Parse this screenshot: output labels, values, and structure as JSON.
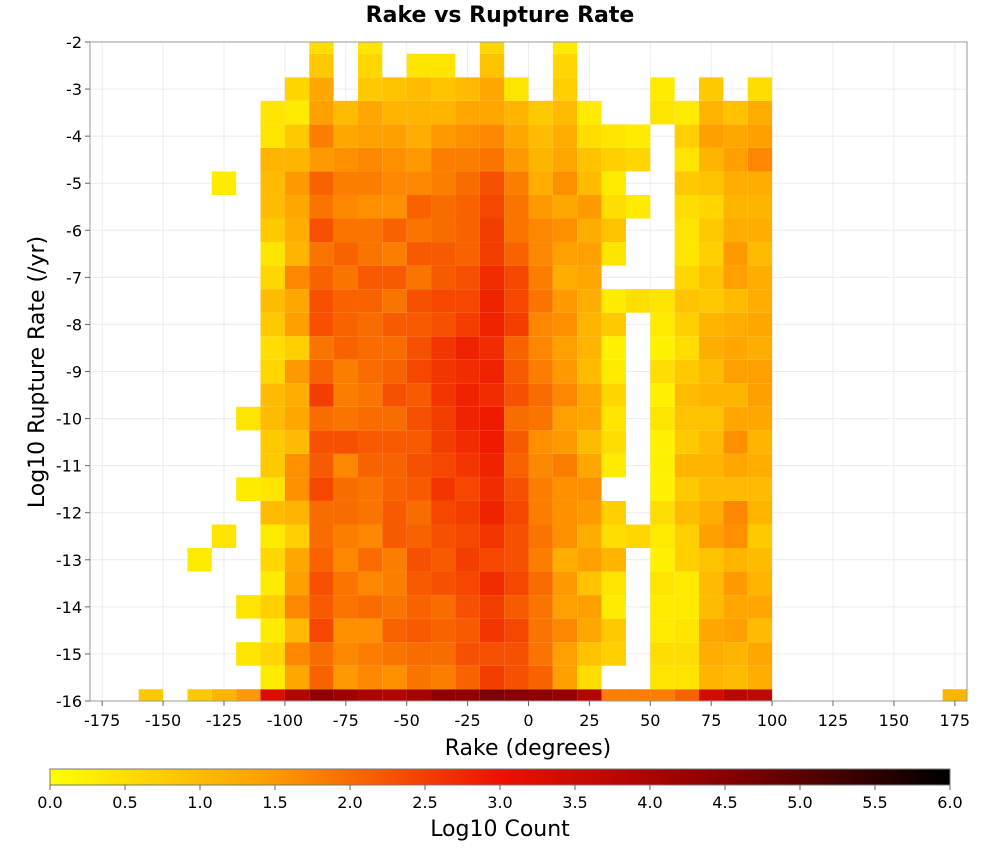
{
  "chart_data": {
    "type": "heatmap",
    "title": "Rake vs Rupture Rate",
    "xlabel": "Rake (degrees)",
    "ylabel": "Log10 Rupture Rate (/yr)",
    "xlim": [
      -180,
      180
    ],
    "ylim": [
      -16,
      -2
    ],
    "x_ticks": [
      "-175",
      "-150",
      "-125",
      "-100",
      "-75",
      "-50",
      "-25",
      "0",
      "25",
      "50",
      "75",
      "100",
      "125",
      "150",
      "175"
    ],
    "y_ticks": [
      "-2",
      "-3",
      "-4",
      "-5",
      "-6",
      "-7",
      "-8",
      "-9",
      "-10",
      "-11",
      "-12",
      "-13",
      "-14",
      "-15",
      "-16"
    ],
    "grid": true,
    "x_bin_width": 10,
    "y_bin_height": 0.5,
    "colorbar": {
      "label": "Log10 Count",
      "min": 0.0,
      "max": 6.0,
      "ticks": [
        "0.0",
        "0.5",
        "1.0",
        "1.5",
        "2.0",
        "2.5",
        "3.0",
        "3.5",
        "4.0",
        "4.5",
        "5.0",
        "5.5",
        "6.0"
      ],
      "colors": [
        "#ffff00",
        "#ff9900",
        "#ee1100",
        "#880000",
        "#000000"
      ]
    },
    "columns": [
      {
        "rake": -155,
        "from": -16,
        "values": [
          0.8
        ]
      },
      {
        "rake": -135,
        "from": -16,
        "values": [
          0.8,
          null,
          null,
          null,
          null,
          null,
          0.3
        ]
      },
      {
        "rake": -125,
        "from": -16,
        "values": [
          1.1,
          null,
          null,
          null,
          null,
          null,
          null,
          0.4,
          null,
          null,
          null,
          null,
          null,
          null,
          null,
          null,
          null,
          null,
          null,
          null,
          null,
          null,
          0.3
        ]
      },
      {
        "rake": -115,
        "from": -16,
        "values": [
          1.5,
          null,
          0.4,
          null,
          0.4,
          null,
          null,
          null,
          null,
          0.3,
          null,
          null,
          0.4
        ]
      },
      {
        "rake": -105,
        "from": -16,
        "values": [
          3.3,
          0.3,
          0.6,
          0.3,
          0.7,
          0.3,
          0.6,
          0.3,
          1.0,
          0.4,
          0.8,
          0.8,
          1.0,
          1.0,
          0.6,
          0.5,
          0.8,
          1.0,
          0.6,
          0.4,
          0.8,
          1.0,
          1.0,
          1.1,
          0.4,
          0.4
        ]
      },
      {
        "rake": -95,
        "from": -16,
        "values": [
          3.9,
          1.3,
          1.7,
          1.0,
          1.7,
          1.4,
          1.3,
          0.7,
          1.1,
          1.6,
          1.6,
          1.0,
          1.3,
          1.2,
          1.5,
          0.7,
          1.4,
          1.3,
          1.7,
          1.1,
          1.2,
          1.3,
          1.5,
          1.1,
          0.8,
          0.3,
          0.6
        ]
      },
      {
        "rake": -85,
        "from": -16,
        "values": [
          4.4,
          2.1,
          2.0,
          2.4,
          2.2,
          2.3,
          2.1,
          2.0,
          2.0,
          2.4,
          2.2,
          2.3,
          2.0,
          2.5,
          2.1,
          1.9,
          2.3,
          2.3,
          2.1,
          1.9,
          2.3,
          1.9,
          2.1,
          1.5,
          1.8,
          1.4,
          1.3,
          0.8,
          0.5
        ]
      },
      {
        "rake": -75,
        "from": -16,
        "values": [
          4.2,
          1.5,
          1.7,
          1.6,
          1.9,
          1.9,
          1.7,
          1.8,
          2.0,
          2.0,
          1.7,
          2.3,
          1.9,
          1.8,
          1.8,
          2.1,
          2.1,
          2.1,
          1.9,
          2.1,
          1.9,
          1.7,
          1.8,
          1.6,
          1.3,
          1.0
        ]
      },
      {
        "rake": -65,
        "from": -16,
        "values": [
          4.0,
          1.7,
          1.8,
          1.6,
          2.0,
          1.7,
          2.0,
          1.7,
          1.9,
          1.9,
          2.1,
          2.2,
          2.0,
          1.9,
          2.0,
          2.0,
          2.0,
          2.1,
          2.2,
          1.9,
          1.9,
          1.6,
          1.8,
          1.7,
          1.4,
          1.3,
          0.8,
          0.6,
          0.4
        ]
      },
      {
        "rake": -55,
        "from": -16,
        "values": [
          3.9,
          1.6,
          1.9,
          2.1,
          1.9,
          1.8,
          1.8,
          2.2,
          2.2,
          2.1,
          2.1,
          2.2,
          2.0,
          2.3,
          2.1,
          2.0,
          2.2,
          1.9,
          2.2,
          1.8,
          2.1,
          1.6,
          1.7,
          1.6,
          1.4,
          1.1,
          0.9
        ]
      },
      {
        "rake": -45,
        "from": -16,
        "values": [
          4.1,
          1.9,
          2.0,
          2.2,
          2.1,
          2.2,
          2.3,
          2.1,
          2.0,
          2.2,
          2.3,
          2.2,
          2.3,
          2.2,
          2.4,
          2.3,
          2.2,
          2.3,
          1.9,
          2.2,
          1.9,
          2.1,
          1.7,
          1.5,
          1.2,
          1.1,
          1.0,
          0.4
        ]
      },
      {
        "rake": -35,
        "from": -16,
        "values": [
          4.4,
          1.8,
          2.0,
          2.1,
          2.0,
          2.3,
          2.2,
          2.3,
          2.4,
          2.6,
          2.4,
          2.5,
          2.5,
          2.6,
          2.6,
          2.6,
          2.3,
          2.4,
          2.2,
          2.2,
          2.0,
          2.0,
          1.8,
          1.8,
          1.5,
          1.1,
          0.9,
          0.4
        ]
      },
      {
        "rake": -25,
        "from": -16,
        "values": [
          4.4,
          2.1,
          2.3,
          2.2,
          2.3,
          2.4,
          2.5,
          2.4,
          2.5,
          2.4,
          2.6,
          2.7,
          2.8,
          2.8,
          2.7,
          2.8,
          2.5,
          2.4,
          2.3,
          2.1,
          2.1,
          2.1,
          2.0,
          1.8,
          1.6,
          1.3,
          1.0
        ]
      },
      {
        "rake": -15,
        "from": -16,
        "values": [
          4.6,
          2.5,
          2.3,
          2.6,
          2.5,
          2.7,
          2.4,
          2.6,
          2.8,
          2.7,
          2.8,
          2.9,
          2.9,
          2.7,
          2.8,
          2.7,
          2.8,
          2.8,
          2.7,
          2.5,
          2.5,
          2.4,
          2.3,
          1.9,
          1.7,
          1.3,
          1.3,
          0.9,
          0.6
        ]
      },
      {
        "rake": -5,
        "from": -16,
        "values": [
          4.5,
          2.3,
          2.3,
          2.4,
          2.2,
          2.4,
          2.3,
          2.3,
          2.4,
          2.3,
          2.1,
          2.2,
          2.0,
          2.3,
          2.2,
          2.1,
          2.5,
          2.4,
          2.4,
          2.1,
          1.9,
          1.9,
          1.8,
          1.5,
          1.3,
          1.1,
          0.4
        ]
      },
      {
        "rake": 5,
        "from": -16,
        "values": [
          4.4,
          2.1,
          1.9,
          1.9,
          1.9,
          2.0,
          1.8,
          1.9,
          1.8,
          1.8,
          1.7,
          1.6,
          1.9,
          2.0,
          1.8,
          1.7,
          1.7,
          1.9,
          1.8,
          1.7,
          1.7,
          1.5,
          1.2,
          1.1,
          1.0,
          0.8
        ]
      },
      {
        "rake": 15,
        "from": -16,
        "values": [
          4.3,
          1.4,
          1.4,
          1.7,
          1.4,
          1.5,
          1.2,
          1.6,
          1.6,
          1.6,
          1.8,
          1.5,
          1.4,
          1.7,
          1.5,
          1.4,
          1.6,
          1.5,
          1.2,
          1.4,
          1.6,
          1.3,
          1.6,
          1.3,
          1.2,
          1.0,
          0.7,
          0.6,
          0.3
        ]
      },
      {
        "rake": 25,
        "from": -16,
        "values": [
          3.9,
          0.5,
          0.9,
          1.3,
          1.4,
          0.9,
          1.4,
          1.2,
          1.5,
          1.6,
          1.3,
          1.0,
          1.3,
          1.3,
          1.0,
          1.1,
          1.1,
          1.2,
          1.3,
          1.4,
          1.2,
          1.5,
          1.0,
          0.9,
          0.5,
          0.3
        ]
      },
      {
        "rake": 35,
        "from": -16,
        "values": [
          1.8,
          null,
          0.7,
          0.8,
          0.3,
          0.4,
          1.1,
          0.5,
          0.7,
          null,
          0.3,
          0.5,
          0.4,
          0.6,
          0.3,
          0.2,
          0.8,
          0.3,
          null,
          0.4,
          0.9,
          0.5,
          0.3,
          0.7,
          0.4
        ]
      },
      {
        "rake": 45,
        "from": -16,
        "values": [
          1.8,
          null,
          null,
          null,
          null,
          null,
          null,
          0.6,
          null,
          null,
          null,
          null,
          null,
          null,
          null,
          null,
          null,
          0.5,
          null,
          null,
          null,
          0.3,
          null,
          0.6,
          0.3
        ]
      },
      {
        "rake": 55,
        "from": -16,
        "values": [
          1.8,
          0.4,
          0.5,
          0.3,
          0.3,
          0.4,
          0.2,
          0.3,
          0.5,
          0.2,
          0.2,
          0.2,
          0.4,
          0.2,
          0.5,
          0.2,
          0.3,
          0.4,
          null,
          null,
          null,
          null,
          null,
          null,
          null,
          0.4,
          0.3
        ]
      },
      {
        "rake": 65,
        "from": -16,
        "values": [
          2.1,
          0.4,
          0.5,
          0.4,
          0.3,
          0.3,
          0.7,
          0.7,
          1.0,
          0.8,
          1.1,
          0.8,
          0.9,
          1.0,
          0.8,
          0.5,
          0.7,
          0.9,
          0.6,
          0.4,
          0.4,
          0.5,
          0.8,
          0.4,
          0.7,
          0.3
        ]
      },
      {
        "rake": 75,
        "from": -16,
        "values": [
          3.4,
          1.1,
          1.2,
          1.3,
          1.0,
          1.0,
          0.9,
          1.4,
          1.2,
          1.0,
          1.1,
          1.0,
          0.9,
          1.1,
          1.0,
          1.2,
          1.1,
          0.8,
          0.9,
          0.7,
          0.8,
          0.6,
          0.9,
          1.1,
          1.4,
          1.1,
          0.8
        ]
      },
      {
        "rake": 85,
        "from": -16,
        "values": [
          3.8,
          1.0,
          1.1,
          1.4,
          1.3,
          1.5,
          1.1,
          1.6,
          1.7,
          1.0,
          1.3,
          1.6,
          1.3,
          1.1,
          1.4,
          1.3,
          1.2,
          1.0,
          1.4,
          1.5,
          1.2,
          1.1,
          1.2,
          1.4,
          1.3,
          0.9
        ]
      },
      {
        "rake": 95,
        "from": -16,
        "values": [
          3.7,
          1.2,
          1.3,
          1.0,
          1.3,
          1.1,
          1.0,
          0.8,
          1.1,
          1.0,
          1.2,
          1.1,
          1.3,
          1.4,
          1.4,
          1.2,
          1.3,
          1.2,
          1.2,
          1.0,
          1.2,
          1.1,
          1.2,
          1.7,
          1.4,
          1.2,
          0.5
        ]
      },
      {
        "rake": 175,
        "from": -16,
        "values": [
          1.1
        ]
      }
    ]
  }
}
